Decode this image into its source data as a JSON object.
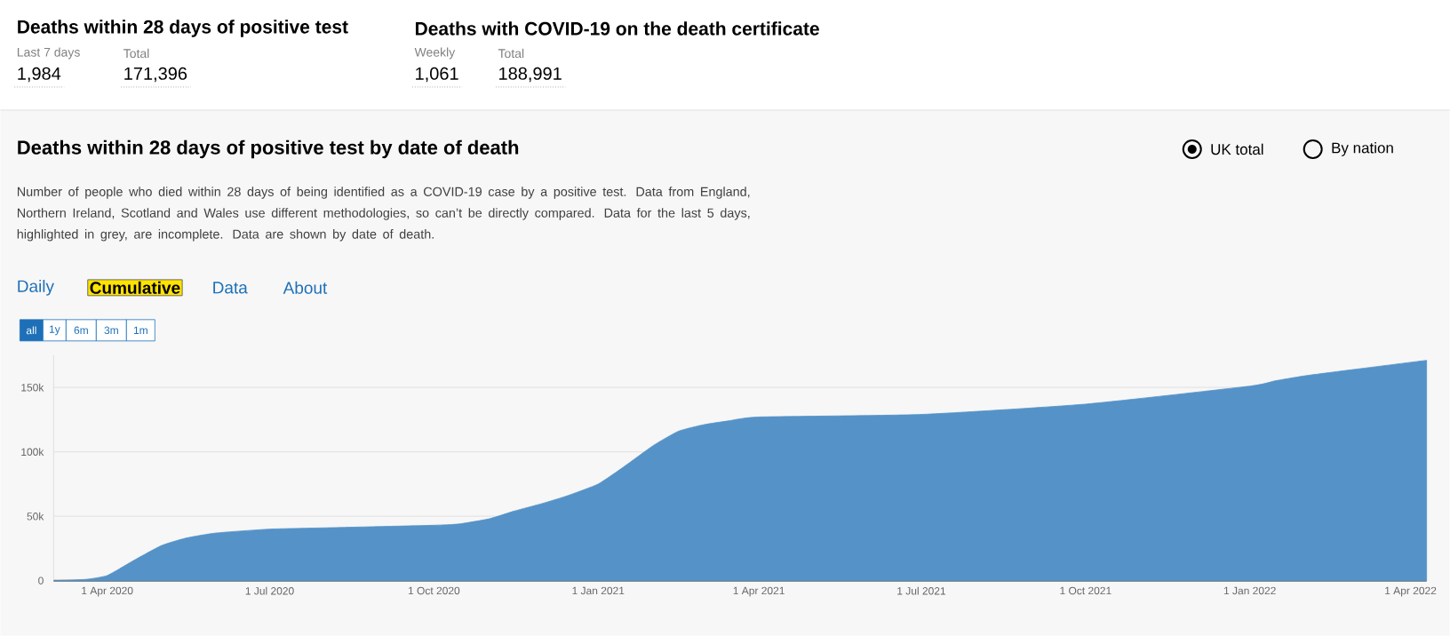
{
  "chart_data": {
    "type": "area",
    "title": "Deaths within 28 days of positive test by date of death",
    "subtitle": "Number of people who died within 28 days of being identified as a COVID-19 case by a positive test. Data from England, Northern Ireland, Scotland and Wales use different methodologies, so can’t be directly compared. Data for the last 5 days, highlighted in grey, are incomplete. Data are shown by date of death.",
    "annotations": [
      "Deaths within 28 days of positive test",
      "Last 7 days",
      "1,984",
      "Total",
      "171,396",
      "Deaths with COVID-19 on the death certificate",
      "Weekly",
      "1,061",
      "Total",
      "188,991",
      "UK total",
      "By nation",
      "Daily",
      "Cumulative",
      "Data",
      "About",
      "all",
      "1y",
      "6m",
      "3m",
      "1m"
    ],
    "x": [
      "2020-03-02",
      "2020-03-20",
      "2020-04-01",
      "2020-04-15",
      "2020-05-01",
      "2020-05-15",
      "2020-06-01",
      "2020-07-01",
      "2020-08-01",
      "2020-09-01",
      "2020-10-01",
      "2020-10-15",
      "2020-11-01",
      "2020-11-15",
      "2020-12-01",
      "2020-12-15",
      "2021-01-01",
      "2021-01-15",
      "2021-02-01",
      "2021-02-15",
      "2021-03-01",
      "2021-03-15",
      "2021-04-01",
      "2021-07-01",
      "2021-10-01",
      "2022-01-01",
      "2022-01-15",
      "2022-02-01",
      "2022-03-01",
      "2022-04-10"
    ],
    "series": [
      {
        "color": "#5592c8",
        "values": [
          0,
          1000,
          4000,
          15000,
          27000,
          33000,
          37000,
          40000,
          41000,
          42000,
          43000,
          44000,
          48000,
          54000,
          60000,
          66000,
          75000,
          88000,
          105000,
          116000,
          121000,
          124000,
          127000,
          129000,
          137000,
          151000,
          155000,
          159000,
          164000,
          171000
        ]
      }
    ],
    "xlim": [
      "2020-03-02",
      "2022-04-10"
    ],
    "xticks": [
      {
        "value": "2020-04-01",
        "label": "1 Apr 2020"
      },
      {
        "value": "2020-07-01",
        "label": "1 Jul 2020"
      },
      {
        "value": "2020-10-01",
        "label": "1 Oct 2020"
      },
      {
        "value": "2021-01-01",
        "label": "1 Jan 2021"
      },
      {
        "value": "2021-04-01",
        "label": "1 Apr 2021"
      },
      {
        "value": "2021-07-01",
        "label": "1 Jul 2021"
      },
      {
        "value": "2021-10-01",
        "label": "1 Oct 2021"
      },
      {
        "value": "2022-01-01",
        "label": "1 Jan 2022"
      },
      {
        "value": "2022-04-01",
        "label": "1 Apr 2022"
      }
    ],
    "ylim": [
      0,
      175000
    ],
    "yticks": [
      0,
      {
        "value": 50000,
        "label": "50k"
      },
      {
        "value": 100000,
        "label": "100k"
      },
      {
        "value": 150000,
        "label": "150k"
      }
    ],
    "grid": "y"
  }
}
